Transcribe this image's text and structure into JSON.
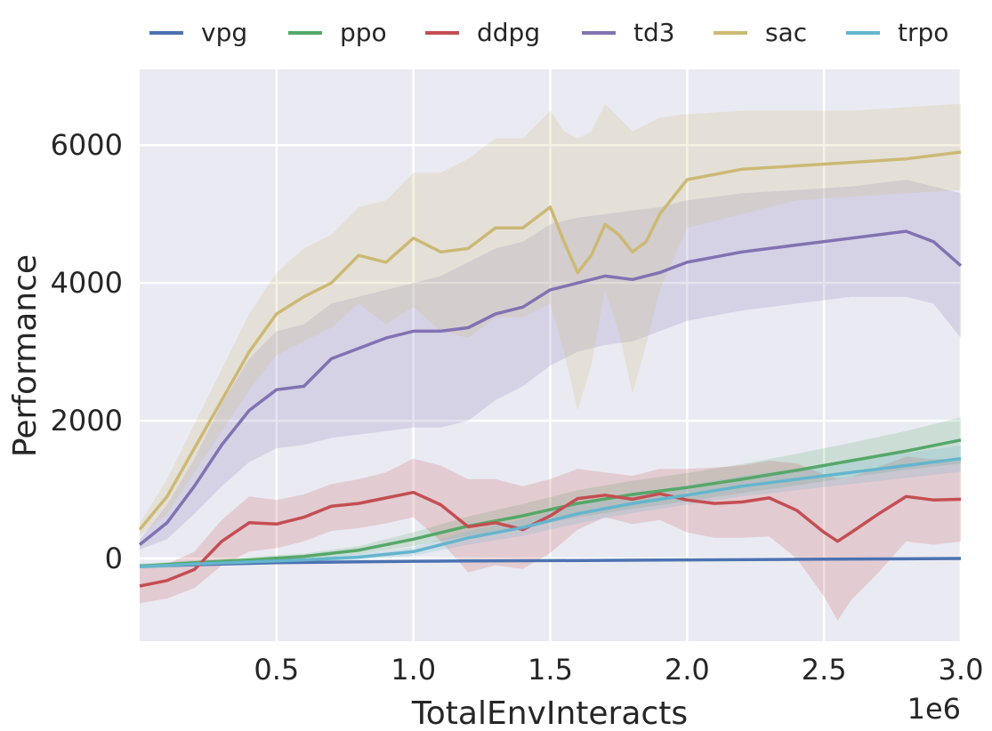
{
  "chart_data": {
    "type": "line",
    "xlabel": "TotalEnvInteracts",
    "ylabel": "Performance",
    "x_multiplier_label": "1e6",
    "xlim": [
      0,
      3.0
    ],
    "ylim": [
      -1200,
      7100
    ],
    "x_ticks": [
      0.5,
      1.0,
      1.5,
      2.0,
      2.5,
      3.0
    ],
    "x_tick_labels": [
      "0.5",
      "1.0",
      "1.5",
      "2.0",
      "2.5",
      "3.0"
    ],
    "y_ticks": [
      0,
      2000,
      4000,
      6000
    ],
    "y_tick_labels": [
      "0",
      "2000",
      "4000",
      "6000"
    ],
    "grid": true,
    "legend_position": "top",
    "series": [
      {
        "name": "vpg",
        "color": "#4c72b0",
        "x": [
          0.0,
          0.5,
          1.0,
          1.5,
          2.0,
          2.5,
          3.0
        ],
        "y": [
          -110,
          -60,
          -40,
          -30,
          -20,
          -10,
          0
        ],
        "lower": [
          -140,
          -80,
          -60,
          -50,
          -40,
          -30,
          -20
        ],
        "upper": [
          -80,
          -40,
          -20,
          -10,
          0,
          10,
          20
        ]
      },
      {
        "name": "ppo",
        "color": "#55a868",
        "x": [
          0.0,
          0.2,
          0.4,
          0.6,
          0.8,
          1.0,
          1.2,
          1.4,
          1.6,
          1.8,
          2.0,
          2.2,
          2.4,
          2.6,
          2.8,
          3.0
        ],
        "y": [
          -110,
          -60,
          -20,
          30,
          120,
          280,
          470,
          620,
          800,
          930,
          1030,
          1150,
          1280,
          1420,
          1560,
          1720
        ],
        "lower": [
          -140,
          -90,
          -60,
          -10,
          60,
          180,
          330,
          450,
          600,
          720,
          830,
          950,
          1060,
          1180,
          1290,
          1380
        ],
        "upper": [
          -80,
          -30,
          20,
          70,
          180,
          380,
          610,
          790,
          990,
          1130,
          1240,
          1370,
          1520,
          1680,
          1850,
          2050
        ]
      },
      {
        "name": "ddpg",
        "color": "#c44e52",
        "x": [
          0.0,
          0.1,
          0.2,
          0.3,
          0.4,
          0.5,
          0.6,
          0.7,
          0.8,
          0.9,
          1.0,
          1.1,
          1.2,
          1.3,
          1.4,
          1.5,
          1.6,
          1.7,
          1.8,
          1.9,
          2.0,
          2.1,
          2.2,
          2.3,
          2.4,
          2.5,
          2.55,
          2.6,
          2.7,
          2.8,
          2.9,
          3.0
        ],
        "y": [
          -400,
          -320,
          -160,
          250,
          520,
          500,
          600,
          760,
          800,
          880,
          960,
          780,
          460,
          520,
          420,
          620,
          870,
          920,
          860,
          940,
          850,
          800,
          820,
          880,
          700,
          380,
          250,
          380,
          650,
          900,
          850,
          860
        ],
        "lower": [
          -650,
          -580,
          -430,
          -100,
          100,
          150,
          250,
          400,
          440,
          510,
          600,
          250,
          -200,
          -100,
          -150,
          80,
          420,
          600,
          500,
          560,
          380,
          300,
          300,
          320,
          0,
          -550,
          -900,
          -600,
          -200,
          250,
          200,
          250
        ],
        "upper": [
          -150,
          -80,
          100,
          560,
          900,
          850,
          930,
          1080,
          1150,
          1250,
          1450,
          1350,
          1150,
          1150,
          1050,
          1150,
          1300,
          1250,
          1200,
          1300,
          1300,
          1320,
          1350,
          1420,
          1380,
          1220,
          1160,
          1180,
          1330,
          1480,
          1440,
          1450
        ]
      },
      {
        "name": "td3",
        "color": "#8172b2",
        "x": [
          0.0,
          0.1,
          0.2,
          0.3,
          0.4,
          0.5,
          0.6,
          0.7,
          0.8,
          0.9,
          1.0,
          1.1,
          1.2,
          1.3,
          1.4,
          1.5,
          1.6,
          1.7,
          1.8,
          1.9,
          2.0,
          2.2,
          2.4,
          2.6,
          2.8,
          2.9,
          3.0
        ],
        "y": [
          200,
          520,
          1050,
          1650,
          2150,
          2450,
          2500,
          2900,
          3050,
          3200,
          3300,
          3300,
          3350,
          3550,
          3650,
          3900,
          4000,
          4100,
          4050,
          4150,
          4300,
          4450,
          4550,
          4650,
          4750,
          4600,
          4250
        ],
        "lower": [
          130,
          280,
          650,
          1050,
          1400,
          1600,
          1650,
          1750,
          1800,
          1850,
          1900,
          1900,
          2000,
          2300,
          2500,
          2800,
          3000,
          3100,
          3150,
          3300,
          3450,
          3600,
          3700,
          3800,
          3800,
          3700,
          3200
        ],
        "upper": [
          270,
          780,
          1450,
          2250,
          2900,
          3300,
          3400,
          3700,
          3800,
          3900,
          4000,
          4100,
          4300,
          4500,
          4600,
          4850,
          4950,
          5000,
          5050,
          5100,
          5200,
          5300,
          5350,
          5400,
          5500,
          5400,
          5300
        ]
      },
      {
        "name": "sac",
        "color": "#ccb974",
        "x": [
          0.0,
          0.1,
          0.2,
          0.3,
          0.4,
          0.5,
          0.6,
          0.7,
          0.8,
          0.9,
          1.0,
          1.1,
          1.2,
          1.3,
          1.4,
          1.5,
          1.55,
          1.6,
          1.65,
          1.7,
          1.75,
          1.8,
          1.85,
          1.9,
          2.0,
          2.2,
          2.4,
          2.6,
          2.8,
          3.0
        ],
        "y": [
          420,
          900,
          1600,
          2300,
          3000,
          3550,
          3800,
          4000,
          4400,
          4300,
          4650,
          4450,
          4500,
          4800,
          4800,
          5100,
          4600,
          4150,
          4400,
          4850,
          4700,
          4450,
          4600,
          5000,
          5500,
          5650,
          5700,
          5750,
          5800,
          5900
        ],
        "lower": [
          330,
          650,
          1250,
          1850,
          2450,
          2950,
          3150,
          3350,
          3700,
          3400,
          3650,
          3300,
          3200,
          3500,
          3500,
          3700,
          3000,
          2150,
          2800,
          3900,
          3300,
          2400,
          3100,
          3900,
          4800,
          5000,
          5200,
          5250,
          5300,
          5350
        ],
        "upper": [
          510,
          1150,
          1950,
          2750,
          3550,
          4150,
          4500,
          4700,
          5100,
          5200,
          5600,
          5600,
          5800,
          6100,
          6100,
          6500,
          6200,
          6100,
          6200,
          6600,
          6400,
          6200,
          6300,
          6400,
          6450,
          6500,
          6500,
          6500,
          6550,
          6600
        ]
      },
      {
        "name": "trpo",
        "color": "#64b5cd",
        "x": [
          0.0,
          0.2,
          0.4,
          0.6,
          0.8,
          1.0,
          1.2,
          1.4,
          1.6,
          1.8,
          2.0,
          2.2,
          2.4,
          2.6,
          2.8,
          3.0
        ],
        "y": [
          -120,
          -80,
          -50,
          -20,
          20,
          100,
          300,
          450,
          650,
          800,
          920,
          1050,
          1150,
          1250,
          1350,
          1450
        ],
        "lower": [
          -150,
          -110,
          -80,
          -50,
          -20,
          40,
          200,
          330,
          510,
          660,
          780,
          900,
          990,
          1080,
          1170,
          1260
        ],
        "upper": [
          -90,
          -50,
          -20,
          10,
          60,
          160,
          400,
          570,
          790,
          940,
          1060,
          1200,
          1310,
          1420,
          1530,
          1640
        ]
      }
    ]
  }
}
